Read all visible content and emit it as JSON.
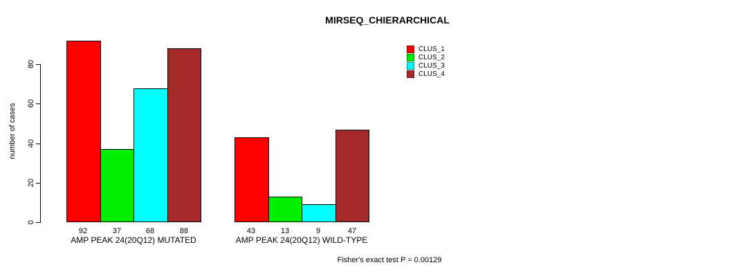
{
  "title": "MIRSEQ_CHIERARCHICAL",
  "y_axis_label": "number of cases",
  "footer_note": "Fisher's exact test P = 0.00129",
  "legend": {
    "entries": [
      {
        "label": "CLUS_1",
        "color": "#FF0000"
      },
      {
        "label": "CLUS_2",
        "color": "#00EE00"
      },
      {
        "label": "CLUS_3",
        "color": "#00FFFF"
      },
      {
        "label": "CLUS_4",
        "color": "#A52A2A"
      }
    ]
  },
  "chart_data": {
    "type": "bar",
    "title": "MIRSEQ_CHIERARCHICAL",
    "ylabel": "number of cases",
    "xlabel": "",
    "categories": [
      "AMP PEAK 24(20Q12) MUTATED",
      "AMP PEAK 24(20Q12) WILD-TYPE"
    ],
    "series": [
      {
        "name": "CLUS_1",
        "color": "#FF0000",
        "values": [
          92,
          43
        ]
      },
      {
        "name": "CLUS_2",
        "color": "#00EE00",
        "values": [
          37,
          13
        ]
      },
      {
        "name": "CLUS_3",
        "color": "#00FFFF",
        "values": [
          68,
          9
        ]
      },
      {
        "name": "CLUS_4",
        "color": "#A52A2A",
        "values": [
          88,
          47
        ]
      }
    ],
    "bar_value_labels": [
      [
        92,
        37,
        68,
        88
      ],
      [
        43,
        13,
        9,
        47
      ]
    ],
    "yticks": [
      0,
      20,
      40,
      60,
      80
    ],
    "ylim": [
      0,
      92
    ],
    "grid": false,
    "legend_position": "top-right",
    "annotation": "Fisher's exact test P = 0.00129"
  }
}
